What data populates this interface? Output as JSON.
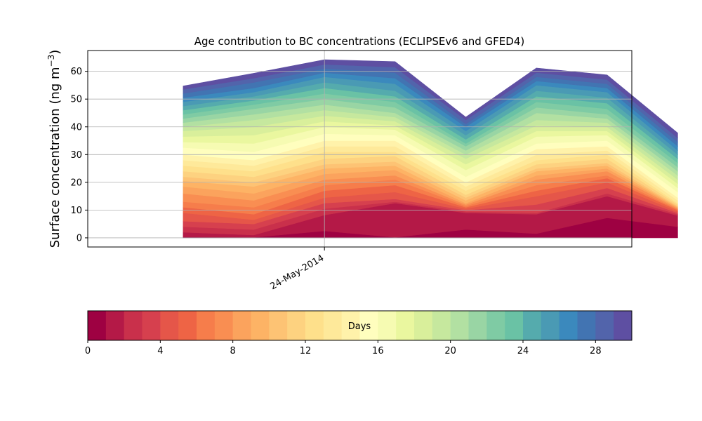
{
  "chart_data": {
    "type": "area",
    "stacked": true,
    "title": "Age contribution to BC concentrations (ECLIPSEv6 and GFED4)",
    "ylabel_main": "Surface concentration (ng m",
    "ylabel_sup": "−3",
    "ylabel_close": ")",
    "ylim": [
      -3.3,
      67.5
    ],
    "yticks": [
      0,
      10,
      20,
      30,
      40,
      50,
      60
    ],
    "xlim": [
      -1.35,
      6.35
    ],
    "x": [
      0,
      1,
      2,
      3,
      4,
      5,
      6,
      7
    ],
    "xtick_positions": [
      2
    ],
    "xtick_labels": [
      "24-May-2014"
    ],
    "grid": true,
    "legend": "none",
    "layer_age_days": [
      0,
      1,
      2,
      3,
      4,
      5,
      6,
      7,
      8,
      9,
      10,
      11,
      12,
      13,
      14,
      15,
      16,
      17,
      18,
      19,
      20,
      21,
      22,
      23,
      24,
      25,
      26,
      27,
      28,
      29
    ],
    "cumulative_boundaries": [
      [
        0.3,
        0.2,
        2.5,
        0.2,
        3.0,
        1.5,
        7.2,
        4.0
      ],
      [
        2.0,
        1.0,
        8.2,
        12.5,
        9.0,
        8.5,
        15.0,
        8.0
      ],
      [
        4.0,
        3.0,
        10.5,
        13.0,
        9.5,
        9.0,
        16.0,
        8.5
      ],
      [
        6.0,
        5.0,
        12.5,
        14.0,
        10.0,
        12.0,
        18.0,
        9.0
      ],
      [
        9.0,
        6.5,
        14.5,
        16.5,
        10.5,
        15.0,
        20.0,
        9.5
      ],
      [
        11.0,
        8.5,
        17.0,
        19.0,
        11.0,
        17.0,
        21.5,
        10.0
      ],
      [
        13.0,
        11.0,
        19.0,
        21.0,
        11.5,
        19.0,
        22.5,
        10.3
      ],
      [
        16.0,
        13.5,
        21.0,
        22.5,
        12.0,
        21.0,
        24.0,
        10.6
      ],
      [
        18.5,
        16.0,
        23.0,
        24.5,
        12.5,
        22.5,
        25.0,
        10.9
      ],
      [
        20.5,
        18.5,
        25.0,
        26.0,
        13.5,
        24.0,
        26.0,
        11.2
      ],
      [
        22.0,
        20.0,
        26.5,
        27.5,
        14.5,
        25.0,
        27.0,
        11.5
      ],
      [
        24.0,
        22.0,
        28.5,
        29.5,
        15.5,
        26.5,
        28.5,
        12.0
      ],
      [
        26.0,
        24.0,
        31.0,
        31.0,
        17.0,
        28.0,
        30.0,
        12.5
      ],
      [
        28.0,
        26.0,
        33.0,
        33.0,
        18.5,
        30.0,
        31.5,
        13.5
      ],
      [
        30.0,
        28.0,
        35.0,
        35.0,
        20.0,
        32.0,
        33.0,
        14.5
      ],
      [
        32.5,
        31.0,
        37.5,
        37.0,
        22.0,
        34.0,
        35.0,
        16.5
      ],
      [
        34.5,
        34.0,
        40.0,
        39.0,
        24.5,
        36.5,
        37.0,
        18.0
      ],
      [
        36.5,
        37.0,
        42.0,
        40.5,
        26.5,
        38.5,
        38.5,
        19.5
      ],
      [
        38.5,
        40.0,
        44.0,
        42.0,
        28.5,
        40.5,
        40.0,
        21.0
      ],
      [
        40.0,
        42.5,
        46.0,
        43.5,
        30.0,
        42.5,
        41.5,
        22.5
      ],
      [
        41.5,
        44.5,
        48.0,
        45.0,
        31.5,
        45.0,
        43.0,
        24.0
      ],
      [
        43.0,
        46.5,
        50.0,
        47.0,
        33.0,
        47.0,
        44.5,
        25.5
      ],
      [
        44.5,
        48.0,
        52.0,
        49.0,
        34.0,
        49.0,
        46.5,
        27.0
      ],
      [
        46.0,
        49.5,
        54.0,
        51.0,
        35.5,
        51.0,
        48.5,
        28.5
      ],
      [
        47.5,
        51.0,
        56.0,
        53.0,
        37.0,
        53.0,
        50.5,
        30.0
      ],
      [
        49.0,
        52.5,
        58.0,
        55.5,
        38.5,
        55.0,
        52.5,
        31.5
      ],
      [
        50.5,
        54.0,
        59.5,
        57.5,
        40.0,
        56.5,
        54.0,
        33.0
      ],
      [
        52.0,
        56.0,
        61.0,
        59.5,
        41.0,
        58.0,
        55.5,
        34.5
      ],
      [
        53.5,
        57.5,
        62.5,
        61.5,
        42.5,
        59.5,
        57.0,
        36.0
      ],
      [
        54.7,
        59.3,
        64.2,
        63.5,
        43.5,
        61.2,
        58.7,
        37.8
      ]
    ],
    "colorbar": {
      "label": "Days",
      "vmin": 0,
      "vmax": 30,
      "ticks": [
        0,
        4,
        8,
        12,
        16,
        20,
        24,
        28
      ],
      "colors": [
        "#9e0142",
        "#b41947",
        "#c9304b",
        "#d6404e",
        "#e55649",
        "#ee6445",
        "#f67d4b",
        "#f98e52",
        "#fba35d",
        "#fdb365",
        "#fdc374",
        "#fdd280",
        "#fee08b",
        "#fee99a",
        "#fff2aa",
        "#fffebe",
        "#f6fbb2",
        "#eaf79f",
        "#d9ef9b",
        "#c6e89e",
        "#b2e0a2",
        "#99d5a4",
        "#7fcba4",
        "#6ac2a5",
        "#55abad",
        "#4a9ab4",
        "#3b89bd",
        "#4274b2",
        "#5264ab",
        "#5e4fa2"
      ]
    }
  }
}
